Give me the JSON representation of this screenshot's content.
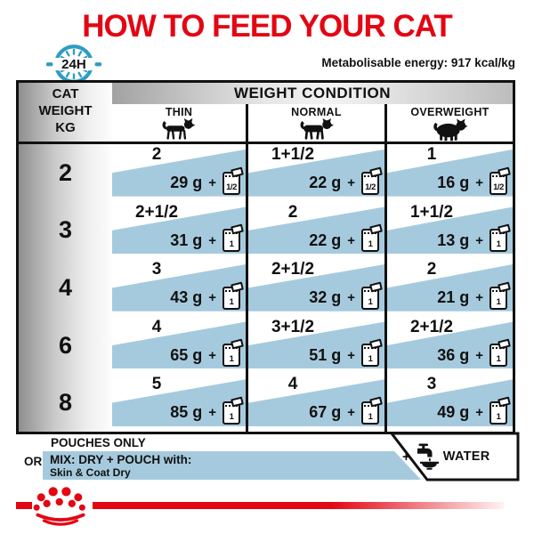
{
  "colors": {
    "accent_red": "#e30613",
    "band_blue": "#a6cadd",
    "clock_teal": "#2e9cc3"
  },
  "header": {
    "title": "HOW TO FEED YOUR CAT",
    "energy_note": "Metabolisable energy: 917 kcal/kg",
    "clock_label": "24H"
  },
  "table": {
    "corner": [
      "CAT",
      "WEIGHT",
      "KG"
    ],
    "weight_condition_label": "WEIGHT CONDITION",
    "columns": [
      {
        "label": "THIN",
        "icon": "thin-cat-icon"
      },
      {
        "label": "NORMAL",
        "icon": "normal-cat-icon"
      },
      {
        "label": "OVERWEIGHT",
        "icon": "overweight-cat-icon"
      }
    ],
    "rows": [
      {
        "weight_kg": "2",
        "cells": [
          {
            "pouches": "2",
            "grams": "29 g",
            "plus": "+",
            "badge": "1/2"
          },
          {
            "pouches": "1+1/2",
            "grams": "22 g",
            "plus": "+",
            "badge": "1/2"
          },
          {
            "pouches": "1",
            "grams": "16 g",
            "plus": "+",
            "badge": "1/2"
          }
        ]
      },
      {
        "weight_kg": "3",
        "cells": [
          {
            "pouches": "2+1/2",
            "grams": "31 g",
            "plus": "+",
            "badge": "1"
          },
          {
            "pouches": "2",
            "grams": "22 g",
            "plus": "+",
            "badge": "1"
          },
          {
            "pouches": "1+1/2",
            "grams": "13 g",
            "plus": "+",
            "badge": "1"
          }
        ]
      },
      {
        "weight_kg": "4",
        "cells": [
          {
            "pouches": "3",
            "grams": "43 g",
            "plus": "+",
            "badge": "1"
          },
          {
            "pouches": "2+1/2",
            "grams": "32 g",
            "plus": "+",
            "badge": "1"
          },
          {
            "pouches": "2",
            "grams": "21 g",
            "plus": "+",
            "badge": "1"
          }
        ]
      },
      {
        "weight_kg": "6",
        "cells": [
          {
            "pouches": "4",
            "grams": "65 g",
            "plus": "+",
            "badge": "1"
          },
          {
            "pouches": "3+1/2",
            "grams": "51 g",
            "plus": "+",
            "badge": "1"
          },
          {
            "pouches": "2+1/2",
            "grams": "36 g",
            "plus": "+",
            "badge": "1"
          }
        ]
      },
      {
        "weight_kg": "8",
        "cells": [
          {
            "pouches": "5",
            "grams": "85 g",
            "plus": "+",
            "badge": "1"
          },
          {
            "pouches": "4",
            "grams": "67 g",
            "plus": "+",
            "badge": "1"
          },
          {
            "pouches": "3",
            "grams": "49 g",
            "plus": "+",
            "badge": "1"
          }
        ]
      }
    ]
  },
  "legend": {
    "pouches_only": "POUCHES ONLY",
    "or_label": "OR",
    "mix_line1": "MIX: DRY + POUCH with:",
    "mix_line2": "Skin & Coat Dry",
    "water_plus": "+",
    "water_label": "WATER"
  }
}
